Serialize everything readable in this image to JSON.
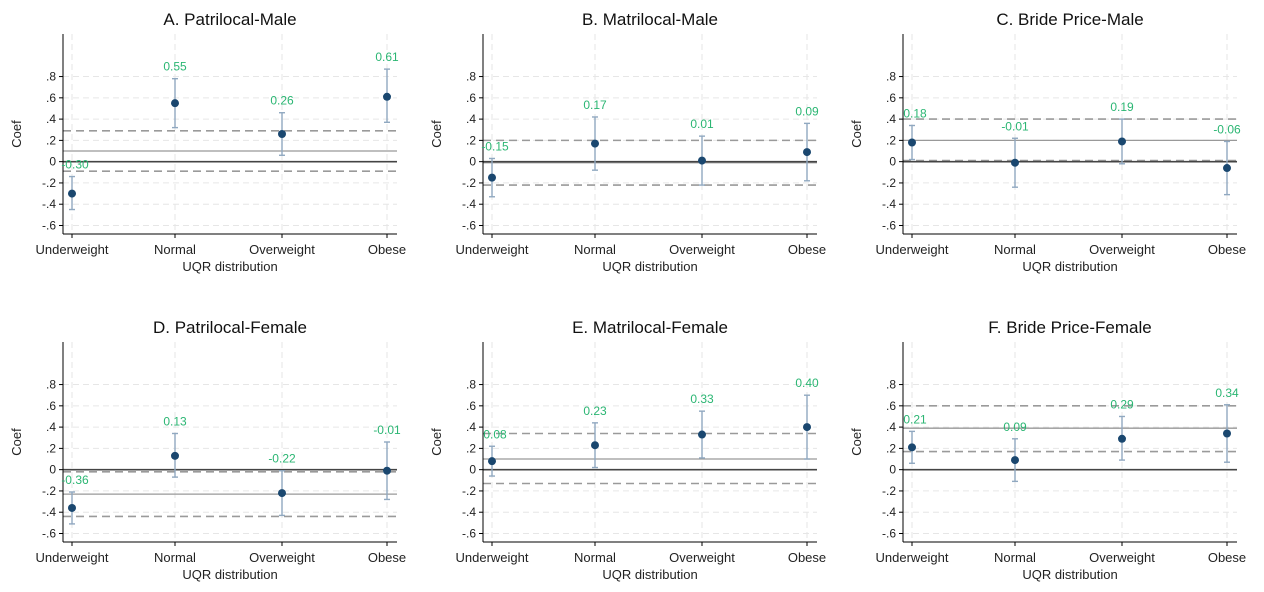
{
  "colors": {
    "point": "#1a476f",
    "ci": "#90a8c0",
    "label": "#2bb673",
    "zero_line": "#444444",
    "mean_line": "#999999",
    "band_line": "#9a9a9a",
    "grid": "#e6e6e6",
    "axis": "#000000"
  },
  "chart_data": [
    {
      "type": "scatter",
      "title": "A. Patrilocal-Male",
      "xlabel": "UQR distribution",
      "ylabel": "Coef",
      "categories": [
        "Underweight",
        "Normal",
        "Overweight",
        "Obese"
      ],
      "yticks": [
        ".8",
        ".6",
        ".4",
        ".2",
        "0",
        "-.2",
        "-.4",
        "-.6"
      ],
      "ylim": [
        -0.68,
        1.2
      ],
      "grid": true,
      "values": [
        -0.3,
        0.55,
        0.26,
        0.61
      ],
      "value_labels": [
        "-0.30",
        "0.55",
        "0.26",
        "0.61"
      ],
      "ci_low": [
        -0.45,
        0.32,
        0.06,
        0.37
      ],
      "ci_high": [
        -0.14,
        0.78,
        0.46,
        0.87
      ],
      "mean_line": 0.1,
      "band": [
        -0.09,
        0.29
      ]
    },
    {
      "type": "scatter",
      "title": "B. Matrilocal-Male",
      "xlabel": "UQR distribution",
      "ylabel": "Coef",
      "categories": [
        "Underweight",
        "Normal",
        "Overweight",
        "Obese"
      ],
      "yticks": [
        ".8",
        ".6",
        ".4",
        ".2",
        "0",
        "-.2",
        "-.4",
        "-.6"
      ],
      "ylim": [
        -0.68,
        1.2
      ],
      "grid": true,
      "values": [
        -0.15,
        0.17,
        0.01,
        0.09
      ],
      "value_labels": [
        "-0.15",
        "0.17",
        "0.01",
        "0.09"
      ],
      "ci_low": [
        -0.33,
        -0.08,
        -0.22,
        -0.18
      ],
      "ci_high": [
        0.03,
        0.42,
        0.24,
        0.36
      ],
      "mean_line": -0.01,
      "band": [
        -0.22,
        0.2
      ]
    },
    {
      "type": "scatter",
      "title": "C. Bride Price-Male",
      "xlabel": "UQR distribution",
      "ylabel": "Coef",
      "categories": [
        "Underweight",
        "Normal",
        "Overweight",
        "Obese"
      ],
      "yticks": [
        ".8",
        ".6",
        ".4",
        ".2",
        "0",
        "-.2",
        "-.4",
        "-.6"
      ],
      "ylim": [
        -0.68,
        1.2
      ],
      "grid": true,
      "values": [
        0.18,
        -0.01,
        0.19,
        -0.06
      ],
      "value_labels": [
        "0.18",
        "-0.01",
        "0.19",
        "-0.06"
      ],
      "ci_low": [
        0.02,
        -0.24,
        -0.02,
        -0.31
      ],
      "ci_high": [
        0.34,
        0.22,
        0.4,
        0.19
      ],
      "mean_line": 0.2,
      "band": [
        0.01,
        0.4
      ]
    },
    {
      "type": "scatter",
      "title": "D. Patrilocal-Female",
      "xlabel": "UQR distribution",
      "ylabel": "Coef",
      "categories": [
        "Underweight",
        "Normal",
        "Overweight",
        "Obese"
      ],
      "yticks": [
        ".8",
        ".6",
        ".4",
        ".2",
        "0",
        "-.2",
        "-.4",
        "-.6"
      ],
      "ylim": [
        -0.68,
        1.2
      ],
      "grid": true,
      "values": [
        -0.36,
        0.13,
        -0.22,
        -0.01
      ],
      "value_labels": [
        "-0.36",
        "0.13",
        "-0.22",
        "-0.01"
      ],
      "ci_low": [
        -0.51,
        -0.07,
        -0.43,
        -0.28
      ],
      "ci_high": [
        -0.21,
        0.34,
        -0.01,
        0.26
      ],
      "mean_line": -0.23,
      "band": [
        -0.44,
        -0.02
      ]
    },
    {
      "type": "scatter",
      "title": "E. Matrilocal-Female",
      "xlabel": "UQR distribution",
      "ylabel": "Coef",
      "categories": [
        "Underweight",
        "Normal",
        "Overweight",
        "Obese"
      ],
      "yticks": [
        ".8",
        ".6",
        ".4",
        ".2",
        "0",
        "-.2",
        "-.4",
        "-.6"
      ],
      "ylim": [
        -0.68,
        1.2
      ],
      "grid": true,
      "values": [
        0.08,
        0.23,
        0.33,
        0.4
      ],
      "value_labels": [
        "0.08",
        "0.23",
        "0.33",
        "0.40"
      ],
      "ci_low": [
        -0.06,
        0.02,
        0.11,
        0.1
      ],
      "ci_high": [
        0.22,
        0.44,
        0.55,
        0.7
      ],
      "mean_line": 0.1,
      "band": [
        -0.13,
        0.34
      ]
    },
    {
      "type": "scatter",
      "title": "F. Bride Price-Female",
      "xlabel": "UQR distribution",
      "ylabel": "Coef",
      "categories": [
        "Underweight",
        "Normal",
        "Overweight",
        "Obese"
      ],
      "yticks": [
        ".8",
        ".6",
        ".4",
        ".2",
        "0",
        "-.2",
        "-.4",
        "-.6"
      ],
      "ylim": [
        -0.68,
        1.2
      ],
      "grid": true,
      "values": [
        0.21,
        0.09,
        0.29,
        0.34
      ],
      "value_labels": [
        "0.21",
        "0.09",
        "0.29",
        "0.34"
      ],
      "ci_low": [
        0.06,
        -0.11,
        0.09,
        0.07
      ],
      "ci_high": [
        0.36,
        0.29,
        0.5,
        0.61
      ],
      "mean_line": 0.39,
      "band": [
        0.17,
        0.6
      ]
    }
  ]
}
